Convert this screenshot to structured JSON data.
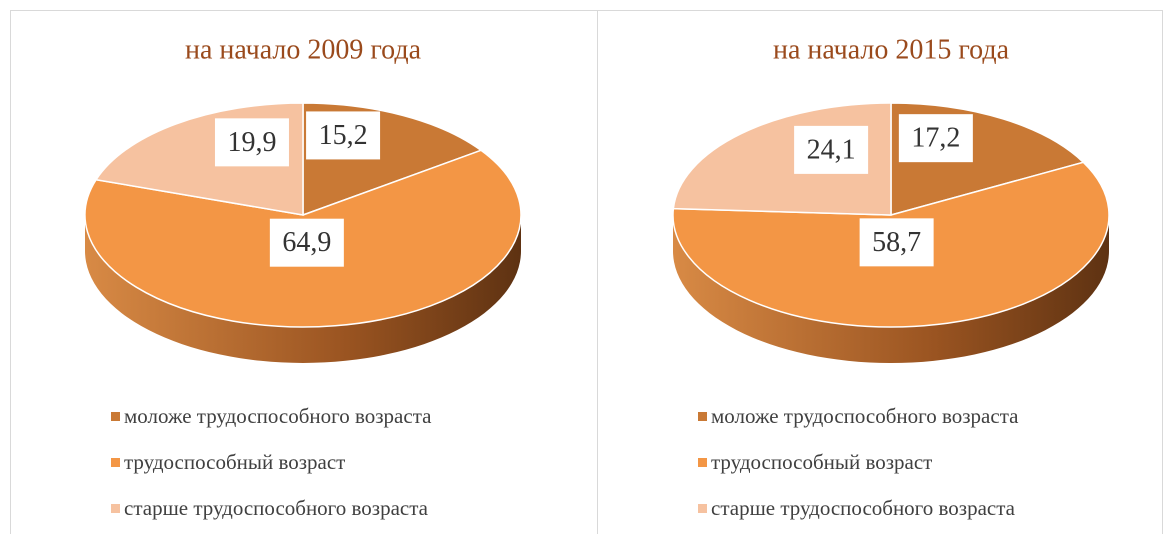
{
  "chart_data": [
    {
      "type": "pie",
      "title": "на начало 2009 года",
      "categories": [
        "моложе трудоспособного возраста",
        "трудоспособный возраст",
        "старше трудоспособного возраста"
      ],
      "values": [
        15.2,
        64.9,
        19.9
      ],
      "value_labels": [
        "15,2",
        "64,9",
        "19,9"
      ],
      "colors": [
        "#c97935",
        "#f39645",
        "#f6c2a0"
      ],
      "legend": "bottom"
    },
    {
      "type": "pie",
      "title": "на начало 2015 года",
      "categories": [
        "моложе трудоспособного возраста",
        "трудоспособный возраст",
        "старше трудоспособного возраста"
      ],
      "values": [
        17.2,
        58.7,
        24.1
      ],
      "value_labels": [
        "17,2",
        "58,7",
        "24,1"
      ],
      "colors": [
        "#c97935",
        "#f39645",
        "#f6c2a0"
      ],
      "legend": "bottom"
    }
  ]
}
